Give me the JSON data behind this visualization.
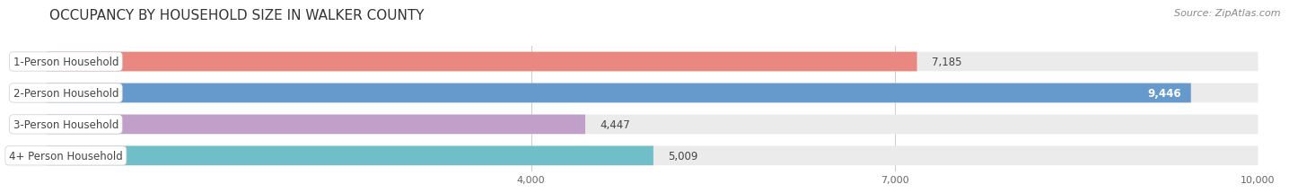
{
  "title": "OCCUPANCY BY HOUSEHOLD SIZE IN WALKER COUNTY",
  "source": "Source: ZipAtlas.com",
  "categories": [
    "1-Person Household",
    "2-Person Household",
    "3-Person Household",
    "4+ Person Household"
  ],
  "values": [
    7185,
    9446,
    4447,
    5009
  ],
  "bar_colors": [
    "#e88880",
    "#6699cc",
    "#c0a0c8",
    "#70bec8"
  ],
  "label_colors": [
    "#000000",
    "#ffffff",
    "#000000",
    "#000000"
  ],
  "xlim": [
    0,
    10000
  ],
  "xticks": [
    4000,
    7000,
    10000
  ],
  "xtick_labels": [
    "4,000",
    "7,000",
    "10,000"
  ],
  "bar_height": 0.62,
  "background_color": "#ffffff",
  "bar_bg_color": "#ebebeb",
  "title_fontsize": 11,
  "source_fontsize": 8,
  "label_fontsize": 8.5,
  "value_fontsize": 8.5
}
